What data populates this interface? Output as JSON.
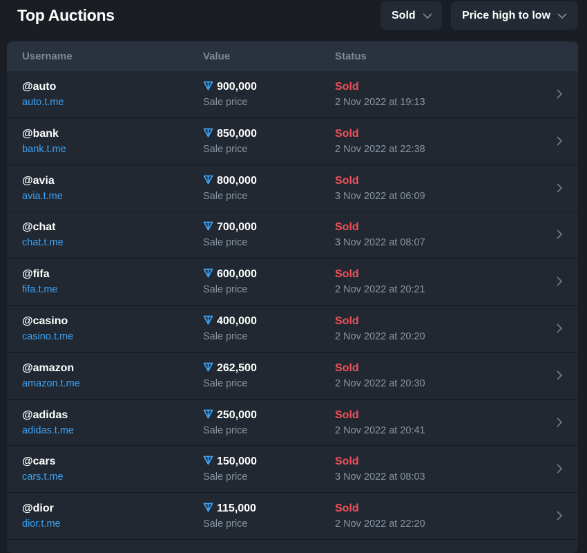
{
  "header": {
    "title": "Top Auctions",
    "filter": "Sold",
    "sort": "Price high to low"
  },
  "columns": [
    "Username",
    "Value",
    "Status"
  ],
  "colors": {
    "link": "#3ea3f5",
    "sold": "#f0515b",
    "ton": "#3ea3f5"
  },
  "rows": [
    {
      "username": "@auto",
      "link": "auto.t.me",
      "value": "900,000",
      "value_label": "Sale price",
      "status": "Sold",
      "date": "2 Nov 2022 at 19:13"
    },
    {
      "username": "@bank",
      "link": "bank.t.me",
      "value": "850,000",
      "value_label": "Sale price",
      "status": "Sold",
      "date": "2 Nov 2022 at 22:38"
    },
    {
      "username": "@avia",
      "link": "avia.t.me",
      "value": "800,000",
      "value_label": "Sale price",
      "status": "Sold",
      "date": "3 Nov 2022 at 06:09"
    },
    {
      "username": "@chat",
      "link": "chat.t.me",
      "value": "700,000",
      "value_label": "Sale price",
      "status": "Sold",
      "date": "3 Nov 2022 at 08:07"
    },
    {
      "username": "@fifa",
      "link": "fifa.t.me",
      "value": "600,000",
      "value_label": "Sale price",
      "status": "Sold",
      "date": "2 Nov 2022 at 20:21"
    },
    {
      "username": "@casino",
      "link": "casino.t.me",
      "value": "400,000",
      "value_label": "Sale price",
      "status": "Sold",
      "date": "2 Nov 2022 at 20:20"
    },
    {
      "username": "@amazon",
      "link": "amazon.t.me",
      "value": "262,500",
      "value_label": "Sale price",
      "status": "Sold",
      "date": "2 Nov 2022 at 20:30"
    },
    {
      "username": "@adidas",
      "link": "adidas.t.me",
      "value": "250,000",
      "value_label": "Sale price",
      "status": "Sold",
      "date": "2 Nov 2022 at 20:41"
    },
    {
      "username": "@cars",
      "link": "cars.t.me",
      "value": "150,000",
      "value_label": "Sale price",
      "status": "Sold",
      "date": "3 Nov 2022 at 08:03"
    },
    {
      "username": "@dior",
      "link": "dior.t.me",
      "value": "115,000",
      "value_label": "Sale price",
      "status": "Sold",
      "date": "2 Nov 2022 at 22:20"
    }
  ]
}
